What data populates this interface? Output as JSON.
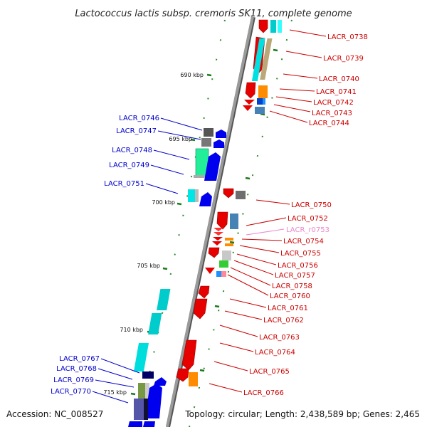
{
  "title": "Lactococcus lactis subsp. cremoris SK11, complete genome",
  "accession": "Accession: NC_008527",
  "topology": "Topology: circular; Length: 2,438,589 bp; Genes: 2,465",
  "colors": {
    "backbone": "#8a8a8a",
    "minus_label": "#0000cc",
    "plus_label": "#cc0000",
    "rna_label": "#ee88cc",
    "tick": "#2e8b2e"
  },
  "ticks": [
    {
      "label": "690 kbp"
    },
    {
      "label": "695 kbp"
    },
    {
      "label": "700 kbp"
    },
    {
      "label": "705 kbp"
    },
    {
      "label": "710 kbp"
    },
    {
      "label": "715 kbp"
    }
  ],
  "genes_plus": [
    {
      "label": "LACR_0738"
    },
    {
      "label": "LACR_0739"
    },
    {
      "label": "LACR_0740"
    },
    {
      "label": "LACR_0741"
    },
    {
      "label": "LACR_0742"
    },
    {
      "label": "LACR_0743"
    },
    {
      "label": "LACR_0744"
    },
    {
      "label": "LACR_0750"
    },
    {
      "label": "LACR_0752"
    },
    {
      "label": "LACR_r0753"
    },
    {
      "label": "LACR_0754"
    },
    {
      "label": "LACR_0755"
    },
    {
      "label": "LACR_0756"
    },
    {
      "label": "LACR_0757"
    },
    {
      "label": "LACR_0758"
    },
    {
      "label": "LACR_0760"
    },
    {
      "label": "LACR_0761"
    },
    {
      "label": "LACR_0762"
    },
    {
      "label": "LACR_0763"
    },
    {
      "label": "LACR_0764"
    },
    {
      "label": "LACR_0765"
    },
    {
      "label": "LACR_0766"
    }
  ],
  "genes_minus": [
    {
      "label": "LACR_0746"
    },
    {
      "label": "LACR_0747"
    },
    {
      "label": "LACR_0748"
    },
    {
      "label": "LACR_0749"
    },
    {
      "label": "LACR_0751"
    },
    {
      "label": "LACR_0767"
    },
    {
      "label": "LACR_0768"
    },
    {
      "label": "LACR_0769"
    },
    {
      "label": "LACR_0770"
    }
  ]
}
